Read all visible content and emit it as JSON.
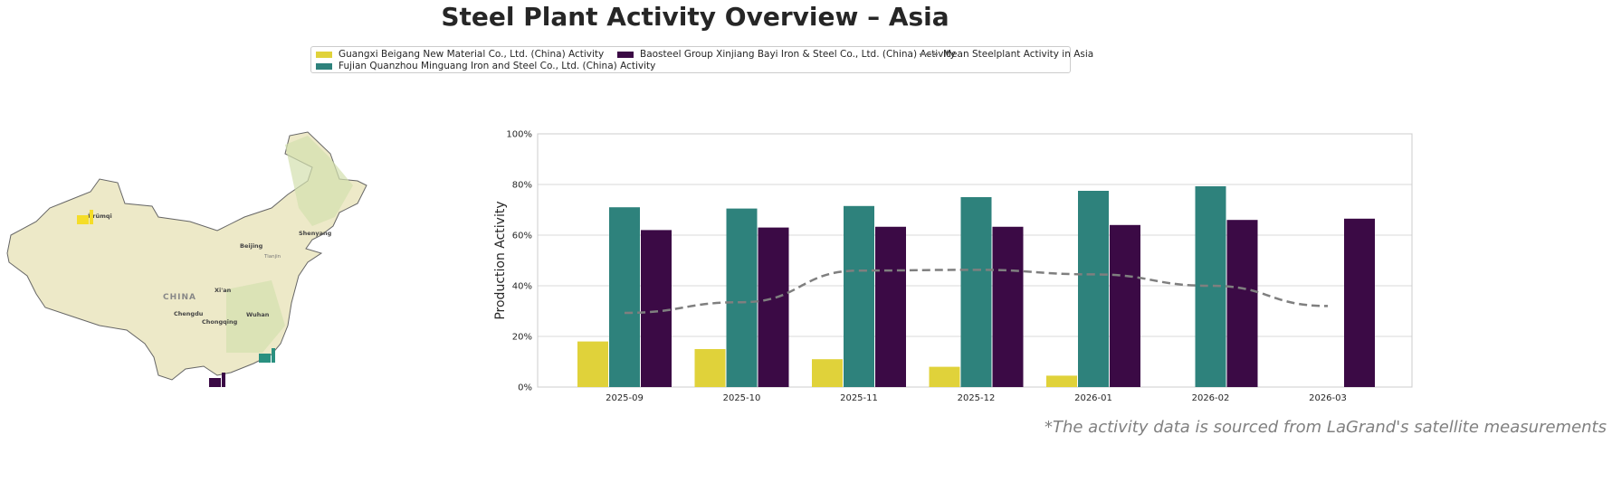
{
  "title": "Steel Plant Activity Overview – Asia",
  "footnote": "*The activity data is sourced from LaGrand's satellite measurements",
  "map": {
    "country_label": "CHINA",
    "cities": [
      "Ürümqi",
      "Beijing",
      "Shenyang",
      "Xi'an",
      "Chengdu",
      "Chongqing",
      "Wuhan",
      "Tianjin"
    ],
    "markers": [
      {
        "plant": "Guangxi Beigang New Material Co., Ltd. (China)",
        "color": "#f5dd29",
        "icon": "factory-icon"
      },
      {
        "plant": "Fujian Quanzhou Minguang Iron and Steel Co., Ltd. (China)",
        "color": "#2a9080",
        "icon": "factory-icon"
      },
      {
        "plant": "Baosteel Group Xinjiang Bayi Iron & Steel Co., Ltd. (China)",
        "color": "#3b0a45",
        "icon": "factory-icon"
      }
    ]
  },
  "chart_data": {
    "type": "bar",
    "title": "",
    "xlabel": "",
    "ylabel": "Production Activity",
    "ylim": [
      0,
      100
    ],
    "yticks": [
      "0%",
      "20%",
      "40%",
      "60%",
      "80%",
      "100%"
    ],
    "grid": true,
    "legend_placement": "top-center",
    "categories": [
      "2025-09",
      "2025-10",
      "2025-11",
      "2025-12",
      "2026-01",
      "2026-02",
      "2026-03"
    ],
    "series": [
      {
        "name": "Guangxi Beigang New Material Co., Ltd. (China) Activity",
        "color": "#e0d23a",
        "values": [
          18,
          15,
          11,
          8,
          4.5,
          null,
          null
        ]
      },
      {
        "name": "Fujian Quanzhou Minguang Iron and Steel Co., Ltd. (China) Activity",
        "color": "#2e827c",
        "values": [
          71,
          70.5,
          71.5,
          75,
          77.5,
          79.3,
          null
        ]
      },
      {
        "name": "Baosteel Group Xinjiang Bayi Iron & Steel Co., Ltd. (China) Activity",
        "color": "#3b0a45",
        "values": [
          62,
          63,
          63.3,
          63.3,
          64,
          66,
          66.5
        ]
      }
    ],
    "line": {
      "name": "Mean Steelplant Activity in Asia",
      "color": "#7f7f7f",
      "style": "dashed",
      "values": [
        29.3,
        33.5,
        46,
        46.3,
        44.5,
        40,
        32
      ]
    }
  }
}
